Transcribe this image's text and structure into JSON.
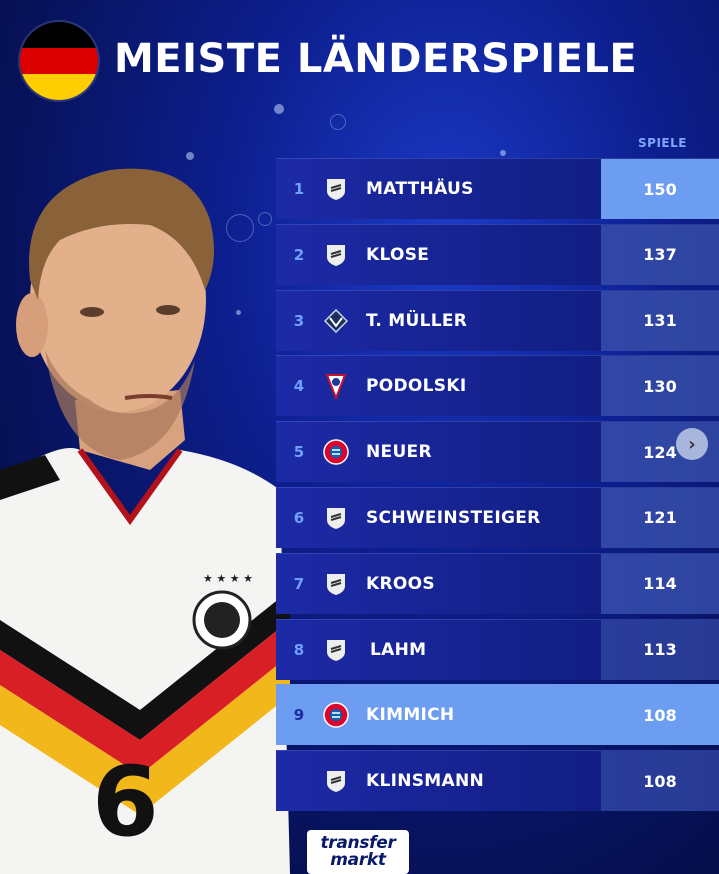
{
  "title": "MEISTE LÄNDERSPIELE",
  "column_header": "SPIELE",
  "flag_colors": [
    "#000000",
    "#dd0000",
    "#ffce00"
  ],
  "colors": {
    "accent": "#6c9df0",
    "row_bg": "#132088",
    "rank_color": "#6fa0ff"
  },
  "rows": [
    {
      "rank": "1",
      "name": "MATTHÄUS",
      "value": "150",
      "badge": "dfb-badge"
    },
    {
      "rank": "2",
      "name": "KLOSE",
      "value": "137",
      "badge": "dfb-badge"
    },
    {
      "rank": "3",
      "name": "T. MÜLLER",
      "value": "131",
      "badge": "vancouver-badge"
    },
    {
      "rank": "4",
      "name": "PODOLSKI",
      "value": "130",
      "badge": "gornik-badge"
    },
    {
      "rank": "5",
      "name": "NEUER",
      "value": "124",
      "badge": "bayern-badge"
    },
    {
      "rank": "6",
      "name": "SCHWEINSTEIGER",
      "value": "121",
      "badge": "dfb-badge"
    },
    {
      "rank": "7",
      "name": "KROOS",
      "value": "114",
      "badge": "dfb-badge"
    },
    {
      "rank": "8",
      "name": "LAHM",
      "value": "113",
      "badge": "dfb-badge"
    },
    {
      "rank": "9",
      "name": "KIMMICH",
      "value": "108",
      "badge": "bayern-badge"
    },
    {
      "rank": "",
      "name": "KLINSMANN",
      "value": "108",
      "badge": "dfb-badge"
    }
  ],
  "jersey_number": "6",
  "logo": {
    "line1": "transfer",
    "line2": "markt"
  }
}
